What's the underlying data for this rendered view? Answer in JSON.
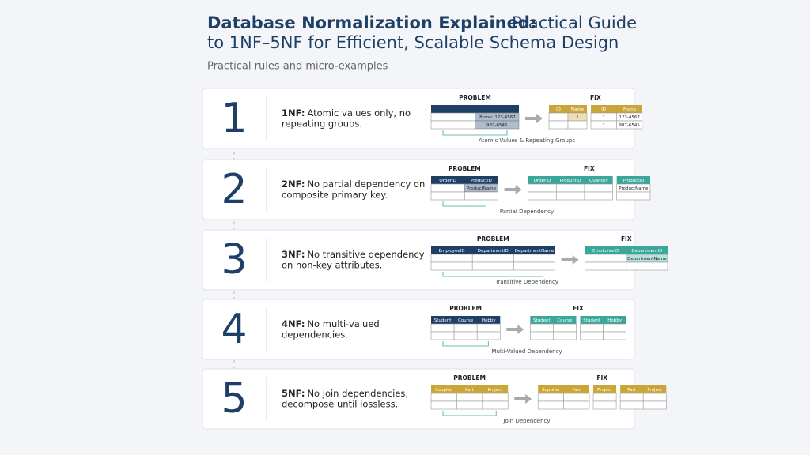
{
  "header": {
    "title_bold": "Database Normalization Explained:",
    "title_rest_1": "Practical Guide",
    "title_rest_2": "to 1NF–5NF for Efficient, Scalable Schema Design",
    "subtitle": "Practical rules and micro-examples"
  },
  "steps": [
    {
      "number": "1",
      "label": "1NF:",
      "text_1": "Atomic values only, no",
      "text_2": "repeating groups.",
      "problem_label": "PROBLEM",
      "fix_label": "FIX",
      "problem": {
        "rows": [
          [
            "Phone: 123-4567"
          ],
          [
            "987-6545"
          ]
        ]
      },
      "fix": [
        {
          "headers": [
            "ID",
            "Name"
          ],
          "rows": [
            [
              "1"
            ]
          ]
        },
        {
          "headers": [
            "ID",
            "Phone"
          ],
          "rows": [
            [
              "1",
              "123-4567"
            ],
            [
              "1",
              "987-6545"
            ]
          ]
        }
      ],
      "caption": "Atomic Values & Repeating Groups"
    },
    {
      "number": "2",
      "label": "2NF:",
      "text_1": "No partial dependency on",
      "text_2": "composite primary key.",
      "problem_label": "PROBLEM",
      "fix_label": "FIX",
      "problem": {
        "headers": [
          "OrderID",
          "ProductID"
        ],
        "rows": [
          [
            "ProductName"
          ]
        ]
      },
      "fix": [
        {
          "headers": [
            "OrderID",
            "ProductID",
            "Quantity"
          ]
        },
        {
          "headers": [
            "ProductID"
          ],
          "rows": [
            [
              "ProductName"
            ]
          ]
        }
      ],
      "caption": "Partial Dependency"
    },
    {
      "number": "3",
      "label": "3NF:",
      "text_1": "No transitive dependency",
      "text_2": "on non-key attributes.",
      "problem_label": "PROBLEM",
      "fix_label": "FIX",
      "problem": {
        "headers": [
          "EmployeeID",
          "DepartmentID",
          "DepartmentName"
        ]
      },
      "fix": [
        {
          "headers": [
            "EmployeeID",
            "DepartmentID"
          ],
          "rows": [
            [
              "DepartmentName"
            ]
          ]
        }
      ],
      "caption": "Transitive Dependency"
    },
    {
      "number": "4",
      "label": "4NF:",
      "text_1": "No multi-valued",
      "text_2": "dependencies.",
      "problem_label": "PROBLEM",
      "fix_label": "FIX",
      "problem": {
        "headers": [
          "Student",
          "Course",
          "Hobby"
        ]
      },
      "fix": [
        {
          "headers": [
            "Student",
            "Course"
          ]
        },
        {
          "headers": [
            "Student",
            "Hobby"
          ]
        }
      ],
      "caption": "Multi-Valued Dependency"
    },
    {
      "number": "5",
      "label": "5NF:",
      "text_1": "No join dependencies,",
      "text_2": "decompose until lossless.",
      "problem_label": "PROBLEM",
      "fix_label": "FIX",
      "problem": {
        "headers": [
          "Supplier",
          "Part",
          "Project"
        ]
      },
      "fix": [
        {
          "headers": [
            "Supplier",
            "Part"
          ]
        },
        {
          "headers": [
            "Project"
          ]
        },
        {
          "headers": [
            "Part",
            "Project"
          ]
        }
      ],
      "caption": "Join Dependency"
    }
  ]
}
